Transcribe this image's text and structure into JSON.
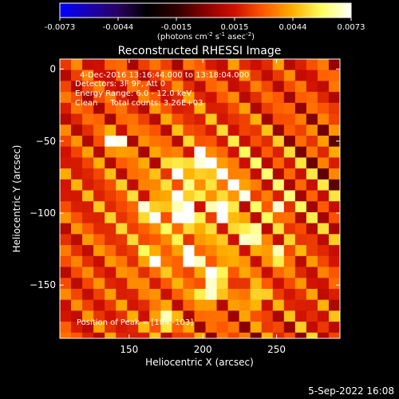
{
  "chart_data": {
    "type": "heatmap",
    "title": "Reconstructed RHESSI Image",
    "xlabel": "Heliocentric X (arcsec)",
    "ylabel": "Heliocentric Y (arcsec)",
    "xlim": [
      103,
      293
    ],
    "ylim": [
      -187,
      7
    ],
    "x_ticks": [
      150,
      200,
      250
    ],
    "y_ticks": [
      0,
      -50,
      -100,
      -150
    ],
    "colorbar": {
      "min": -0.0073,
      "max": 0.0073,
      "ticks": [
        "-0.0073",
        "-0.0044",
        "-0.0015",
        "0.0015",
        "0.0044",
        "0.0073"
      ],
      "unit_label_parts": [
        "(photons cm",
        "-2",
        " s",
        "-1",
        " asec",
        "-2",
        ")"
      ],
      "colormap": [
        "#0000ff",
        "#1a00b0",
        "#2a0060",
        "#000000",
        "#300000",
        "#8a0000",
        "#d01000",
        "#ff5a00",
        "#ffb000",
        "#ffff60",
        "#ffffff"
      ]
    },
    "annotations": [
      "4-Dec-2016 13:16:44.000 to 13:18:04.000",
      "Detectors: 3F 9F, Att 0",
      "Energy Range: 6.0 - 12.0 keV",
      "Clean     Total counts: 3.26E+03"
    ],
    "peak_label": "Position of Peak = [184,-103]",
    "bright_sources": [
      {
        "x": 140,
        "y": -50,
        "value": 0.0062
      },
      {
        "x": 182,
        "y": -71,
        "value": 0.0045
      },
      {
        "x": 199,
        "y": -63,
        "value": 0.0068
      },
      {
        "x": 211,
        "y": -73,
        "value": 0.0073
      },
      {
        "x": 222,
        "y": -83,
        "value": 0.0055
      },
      {
        "x": 186,
        "y": -88,
        "value": 0.006
      },
      {
        "x": 186,
        "y": -103,
        "value": 0.0073
      },
      {
        "x": 166,
        "y": -100,
        "value": 0.0058
      },
      {
        "x": 213,
        "y": -99,
        "value": 0.006
      },
      {
        "x": 233,
        "y": -115,
        "value": 0.005
      },
      {
        "x": 192,
        "y": -131,
        "value": 0.0048
      },
      {
        "x": 210,
        "y": -141,
        "value": 0.0046
      },
      {
        "x": 166,
        "y": -132,
        "value": 0.004
      },
      {
        "x": 253,
        "y": -128,
        "value": 0.0045
      },
      {
        "x": 173,
        "y": -175,
        "value": 0.0055
      },
      {
        "x": 204,
        "y": -155,
        "value": 0.0062
      },
      {
        "x": 235,
        "y": -159,
        "value": 0.0042
      },
      {
        "x": 252,
        "y": -96,
        "value": 0.0038
      }
    ],
    "background_level": 0.0022
  },
  "footer": {
    "timestamp": "5-Sep-2022 16:08"
  }
}
